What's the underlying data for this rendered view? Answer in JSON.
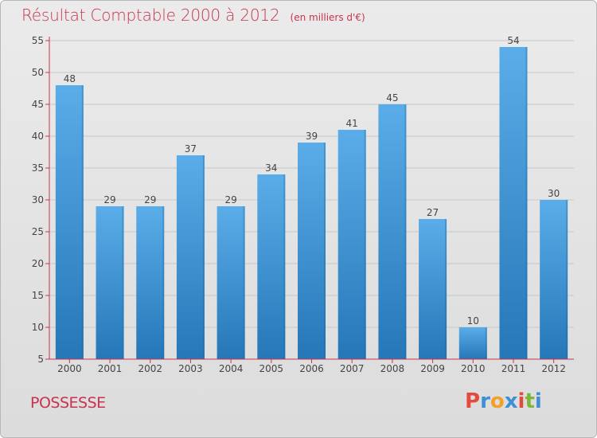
{
  "header": {
    "title": "Résultat Comptable 2000 à 2012",
    "subtitle": "(en milliers d'€)"
  },
  "footer": {
    "commune": "POSSESSE",
    "brand": "Proxiti",
    "brand_colors": [
      "#e34b3c",
      "#3f8ed8",
      "#f2a026",
      "#3f8ed8",
      "#e34b3c",
      "#7bb83a",
      "#3f8ed8"
    ]
  },
  "chart_data": {
    "type": "bar",
    "title": "Résultat Comptable 2000 à 2012",
    "categories": [
      "2000",
      "2001",
      "2002",
      "2003",
      "2004",
      "2005",
      "2006",
      "2007",
      "2008",
      "2009",
      "2010",
      "2011",
      "2012"
    ],
    "values": [
      48,
      29,
      29,
      37,
      29,
      34,
      39,
      41,
      45,
      27,
      10,
      54,
      30
    ],
    "ylim": [
      5,
      55
    ],
    "yticks": [
      5,
      10,
      15,
      20,
      25,
      30,
      35,
      40,
      45,
      50,
      55
    ],
    "grid": true,
    "bar_color_top": "#5aade8",
    "bar_color_bottom": "#2577b8",
    "text_color": "#444444",
    "axis_color": "#c8334d"
  }
}
